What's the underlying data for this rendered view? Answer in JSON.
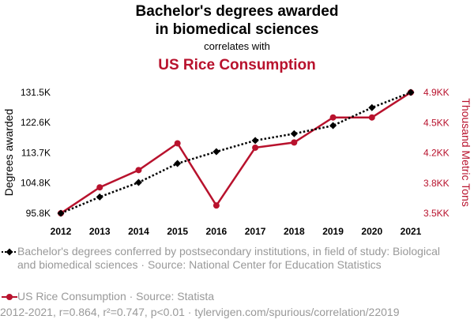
{
  "header": {
    "title_line1": "Bachelor's degrees awarded",
    "title_line2": "in biomedical sciences",
    "connector": "correlates with",
    "title2": "US Rice Consumption"
  },
  "legend": {
    "series1_text": "Bachelor's degrees conferred by postsecondary institutions, in field of study: Biological and biomedical sciences · Source: National Center for Education Statistics",
    "series2_text": "US Rice Consumption · Source: Statista"
  },
  "footer": "2012-2021, r=0.864, r²=0.747, p<0.01 · tylervigen.com/spurious/correlation/22019",
  "colors": {
    "series1": "#000000",
    "series2": "#b8122d",
    "legend_text": "#999999"
  },
  "chart_data": {
    "type": "line",
    "x": [
      2012,
      2013,
      2014,
      2015,
      2016,
      2017,
      2018,
      2019,
      2020,
      2021
    ],
    "xlabel": "",
    "y_left_label": "Degrees awarded",
    "y_right_label": "Thousand Metric Tons",
    "y_left_ticks": [
      "95.8K",
      "104.8K",
      "113.7K",
      "122.6K",
      "131.5K"
    ],
    "y_left_tick_values": [
      95800,
      104800,
      113700,
      122600,
      131500
    ],
    "y_right_ticks": [
      "3.5KK",
      "3.8KK",
      "4.2KK",
      "4.5KK",
      "4.9KK"
    ],
    "y_right_tick_values": [
      3500,
      3850,
      4200,
      4550,
      4900
    ],
    "ylim_left": [
      95800,
      131500
    ],
    "ylim_right": [
      3500,
      4900
    ],
    "series": [
      {
        "name": "Bachelor's degrees awarded",
        "axis": "left",
        "style": "dotted",
        "marker": "diamond",
        "values": [
          95800,
          100600,
          104900,
          110500,
          114000,
          117300,
          119300,
          121700,
          127000,
          131500
        ]
      },
      {
        "name": "US Rice Consumption",
        "axis": "right",
        "style": "solid",
        "marker": "circle",
        "values": [
          3500,
          3800,
          4000,
          4310,
          3590,
          4260,
          4320,
          4610,
          4610,
          4900
        ]
      }
    ],
    "grid": false
  }
}
